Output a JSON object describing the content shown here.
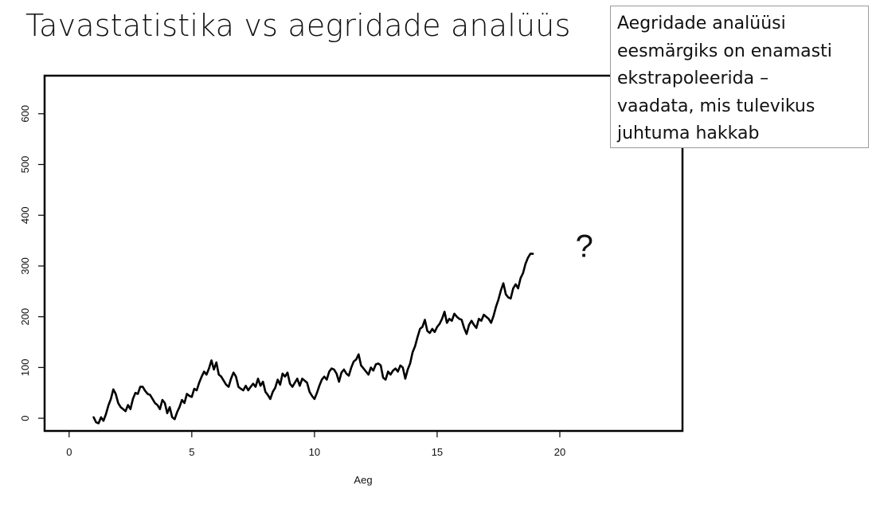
{
  "slide": {
    "title": "Tavastatistika vs aegridade analüüs",
    "callout_lines": [
      "Aegridade analüüsi",
      "eesmärgiks on enamasti",
      "ekstrapoleerida –",
      "vaadata, mis tulevikus",
      "juhtuma hakkab"
    ]
  },
  "chart_data": {
    "type": "line",
    "title": "",
    "xlabel": "Aeg",
    "ylabel": "",
    "xlim": [
      -1,
      25
    ],
    "ylim": [
      -25,
      675
    ],
    "x_ticks": [
      0,
      5,
      10,
      15,
      20
    ],
    "y_ticks": [
      0,
      100,
      200,
      300,
      400,
      500,
      600
    ],
    "grid": false,
    "annotation": {
      "text": "?",
      "x": 21,
      "y": 340
    },
    "line_color": "#000000",
    "series": [
      {
        "points": [
          [
            1.0,
            2
          ],
          [
            1.1,
            -8
          ],
          [
            1.2,
            -10
          ],
          [
            1.3,
            2
          ],
          [
            1.4,
            -5
          ],
          [
            1.5,
            8
          ],
          [
            1.6,
            25
          ],
          [
            1.7,
            38
          ],
          [
            1.8,
            57
          ],
          [
            1.9,
            48
          ],
          [
            2.0,
            30
          ],
          [
            2.1,
            22
          ],
          [
            2.2,
            18
          ],
          [
            2.3,
            14
          ],
          [
            2.4,
            26
          ],
          [
            2.5,
            18
          ],
          [
            2.6,
            38
          ],
          [
            2.7,
            50
          ],
          [
            2.8,
            48
          ],
          [
            2.9,
            62
          ],
          [
            3.0,
            62
          ],
          [
            3.1,
            54
          ],
          [
            3.2,
            48
          ],
          [
            3.3,
            46
          ],
          [
            3.4,
            38
          ],
          [
            3.5,
            30
          ],
          [
            3.6,
            26
          ],
          [
            3.7,
            18
          ],
          [
            3.8,
            36
          ],
          [
            3.9,
            30
          ],
          [
            4.0,
            10
          ],
          [
            4.1,
            22
          ],
          [
            4.2,
            2
          ],
          [
            4.3,
            -2
          ],
          [
            4.4,
            12
          ],
          [
            4.5,
            22
          ],
          [
            4.6,
            36
          ],
          [
            4.7,
            30
          ],
          [
            4.8,
            48
          ],
          [
            4.9,
            44
          ],
          [
            5.0,
            42
          ],
          [
            5.1,
            58
          ],
          [
            5.2,
            55
          ],
          [
            5.3,
            70
          ],
          [
            5.4,
            82
          ],
          [
            5.5,
            92
          ],
          [
            5.6,
            86
          ],
          [
            5.7,
            98
          ],
          [
            5.8,
            114
          ],
          [
            5.9,
            96
          ],
          [
            6.0,
            110
          ],
          [
            6.1,
            86
          ],
          [
            6.2,
            82
          ],
          [
            6.3,
            74
          ],
          [
            6.4,
            66
          ],
          [
            6.5,
            62
          ],
          [
            6.6,
            78
          ],
          [
            6.7,
            90
          ],
          [
            6.8,
            82
          ],
          [
            6.9,
            62
          ],
          [
            7.0,
            58
          ],
          [
            7.1,
            55
          ],
          [
            7.2,
            64
          ],
          [
            7.3,
            55
          ],
          [
            7.4,
            62
          ],
          [
            7.5,
            68
          ],
          [
            7.6,
            62
          ],
          [
            7.7,
            78
          ],
          [
            7.8,
            64
          ],
          [
            7.9,
            72
          ],
          [
            8.0,
            52
          ],
          [
            8.1,
            46
          ],
          [
            8.2,
            38
          ],
          [
            8.3,
            52
          ],
          [
            8.4,
            60
          ],
          [
            8.5,
            76
          ],
          [
            8.6,
            66
          ],
          [
            8.7,
            88
          ],
          [
            8.8,
            82
          ],
          [
            8.9,
            90
          ],
          [
            9.0,
            68
          ],
          [
            9.1,
            62
          ],
          [
            9.2,
            70
          ],
          [
            9.3,
            78
          ],
          [
            9.4,
            64
          ],
          [
            9.5,
            78
          ],
          [
            9.6,
            74
          ],
          [
            9.7,
            70
          ],
          [
            9.8,
            52
          ],
          [
            9.9,
            44
          ],
          [
            10.0,
            38
          ],
          [
            10.1,
            50
          ],
          [
            10.2,
            64
          ],
          [
            10.3,
            76
          ],
          [
            10.4,
            82
          ],
          [
            10.5,
            76
          ],
          [
            10.6,
            92
          ],
          [
            10.7,
            98
          ],
          [
            10.8,
            96
          ],
          [
            10.9,
            88
          ],
          [
            11.0,
            72
          ],
          [
            11.1,
            90
          ],
          [
            11.2,
            96
          ],
          [
            11.3,
            88
          ],
          [
            11.4,
            84
          ],
          [
            11.5,
            100
          ],
          [
            11.6,
            112
          ],
          [
            11.7,
            116
          ],
          [
            11.8,
            126
          ],
          [
            11.9,
            104
          ],
          [
            12.0,
            98
          ],
          [
            12.1,
            92
          ],
          [
            12.2,
            86
          ],
          [
            12.3,
            100
          ],
          [
            12.4,
            94
          ],
          [
            12.5,
            106
          ],
          [
            12.6,
            108
          ],
          [
            12.7,
            104
          ],
          [
            12.8,
            80
          ],
          [
            12.9,
            76
          ],
          [
            13.0,
            92
          ],
          [
            13.1,
            86
          ],
          [
            13.2,
            94
          ],
          [
            13.3,
            98
          ],
          [
            13.4,
            92
          ],
          [
            13.5,
            104
          ],
          [
            13.6,
            100
          ],
          [
            13.7,
            78
          ],
          [
            13.8,
            96
          ],
          [
            13.9,
            108
          ],
          [
            14.0,
            130
          ],
          [
            14.1,
            142
          ],
          [
            14.2,
            160
          ],
          [
            14.3,
            176
          ],
          [
            14.4,
            180
          ],
          [
            14.5,
            194
          ],
          [
            14.6,
            172
          ],
          [
            14.7,
            168
          ],
          [
            14.8,
            176
          ],
          [
            14.9,
            170
          ],
          [
            15.0,
            180
          ],
          [
            15.1,
            186
          ],
          [
            15.2,
            196
          ],
          [
            15.3,
            210
          ],
          [
            15.4,
            188
          ],
          [
            15.5,
            196
          ],
          [
            15.6,
            192
          ],
          [
            15.7,
            206
          ],
          [
            15.8,
            200
          ],
          [
            15.9,
            196
          ],
          [
            16.0,
            194
          ],
          [
            16.1,
            178
          ],
          [
            16.2,
            166
          ],
          [
            16.3,
            184
          ],
          [
            16.4,
            192
          ],
          [
            16.5,
            184
          ],
          [
            16.6,
            178
          ],
          [
            16.7,
            196
          ],
          [
            16.8,
            192
          ],
          [
            16.9,
            204
          ],
          [
            17.0,
            200
          ],
          [
            17.1,
            196
          ],
          [
            17.2,
            188
          ],
          [
            17.3,
            202
          ],
          [
            17.4,
            220
          ],
          [
            17.5,
            234
          ],
          [
            17.6,
            252
          ],
          [
            17.7,
            266
          ],
          [
            17.8,
            244
          ],
          [
            17.9,
            238
          ],
          [
            18.0,
            236
          ],
          [
            18.1,
            256
          ],
          [
            18.2,
            264
          ],
          [
            18.3,
            256
          ],
          [
            18.4,
            276
          ],
          [
            18.5,
            286
          ],
          [
            18.6,
            304
          ],
          [
            18.7,
            316
          ],
          [
            18.8,
            324
          ],
          [
            18.9,
            324
          ]
        ]
      }
    ]
  }
}
